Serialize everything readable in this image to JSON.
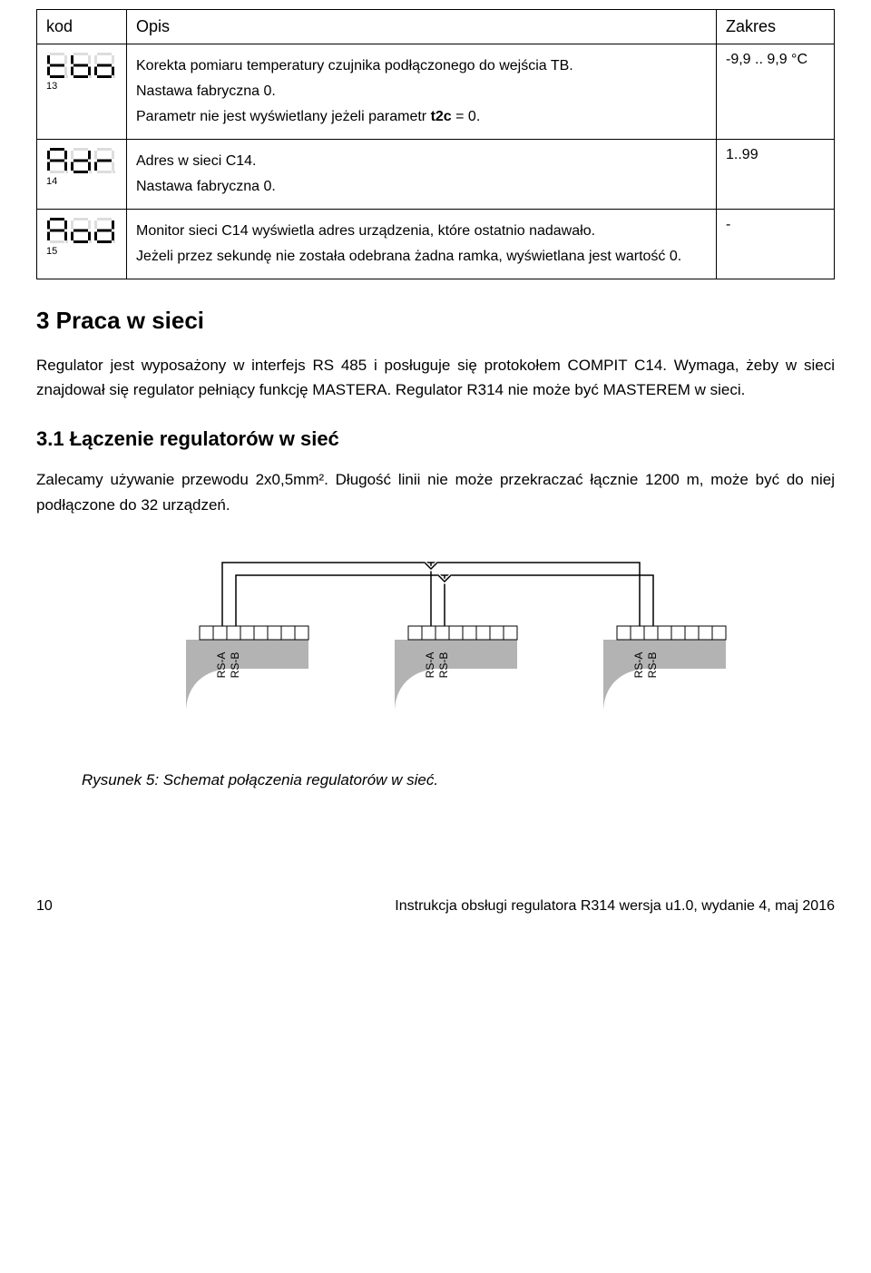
{
  "table": {
    "headers": {
      "kod": "kod",
      "opis": "Opis",
      "zakres": "Zakres"
    },
    "rows": [
      {
        "idx": "13",
        "seg": "tbo",
        "desc_lines": [
          "Korekta pomiaru temperatury czujnika podłączonego do wejścia TB.",
          "Nastawa fabryczna 0.",
          "Parametr nie jest wyświetlany jeżeli parametr t2c = 0."
        ],
        "desc_bold_in": "t2c",
        "zakres": "-9,9 .. 9,9 °C"
      },
      {
        "idx": "14",
        "seg": "Adr",
        "desc_lines": [
          "Adres w sieci C14.",
          "Nastawa fabryczna 0."
        ],
        "zakres": "1..99"
      },
      {
        "idx": "15",
        "seg": "Aod",
        "desc_lines": [
          "Monitor sieci C14 wyświetla adres urządzenia, które ostatnio nadawało.",
          "Jeżeli przez sekundę nie została odebrana żadna ramka, wyświetlana jest wartość 0."
        ],
        "zakres": "-"
      }
    ]
  },
  "section3": {
    "title": "3  Praca w sieci",
    "p1": "Regulator jest wyposażony w interfejs RS 485 i posługuje się protokołem COMPIT C14. Wymaga, żeby w sieci znajdował się regulator pełniący funkcję MASTERA. Regulator R314 nie może być MASTEREM w sieci.",
    "sub_title": "3.1 Łączenie regulatorów w sieć",
    "p2": "Zalecamy używanie przewodu 2x0,5mm². Długość linii nie może przekraczać łącznie 1200 m, może być do niej podłączone do 32 urządzeń."
  },
  "diagram": {
    "labels": [
      "RS-A",
      "RS-B"
    ],
    "node_fill": "#b3b3b3",
    "stroke": "#000000",
    "caption": "Rysunek 5: Schemat połączenia regulatorów w sieć."
  },
  "footer": {
    "page": "10",
    "doc": "Instrukcja obsługi regulatora R314 wersja u1.0, wydanie 4, maj 2016"
  },
  "seg_svg": {
    "width": 78,
    "height": 30,
    "color": "#000000",
    "bg": "#ffffff",
    "ghost": "#dddddd"
  }
}
